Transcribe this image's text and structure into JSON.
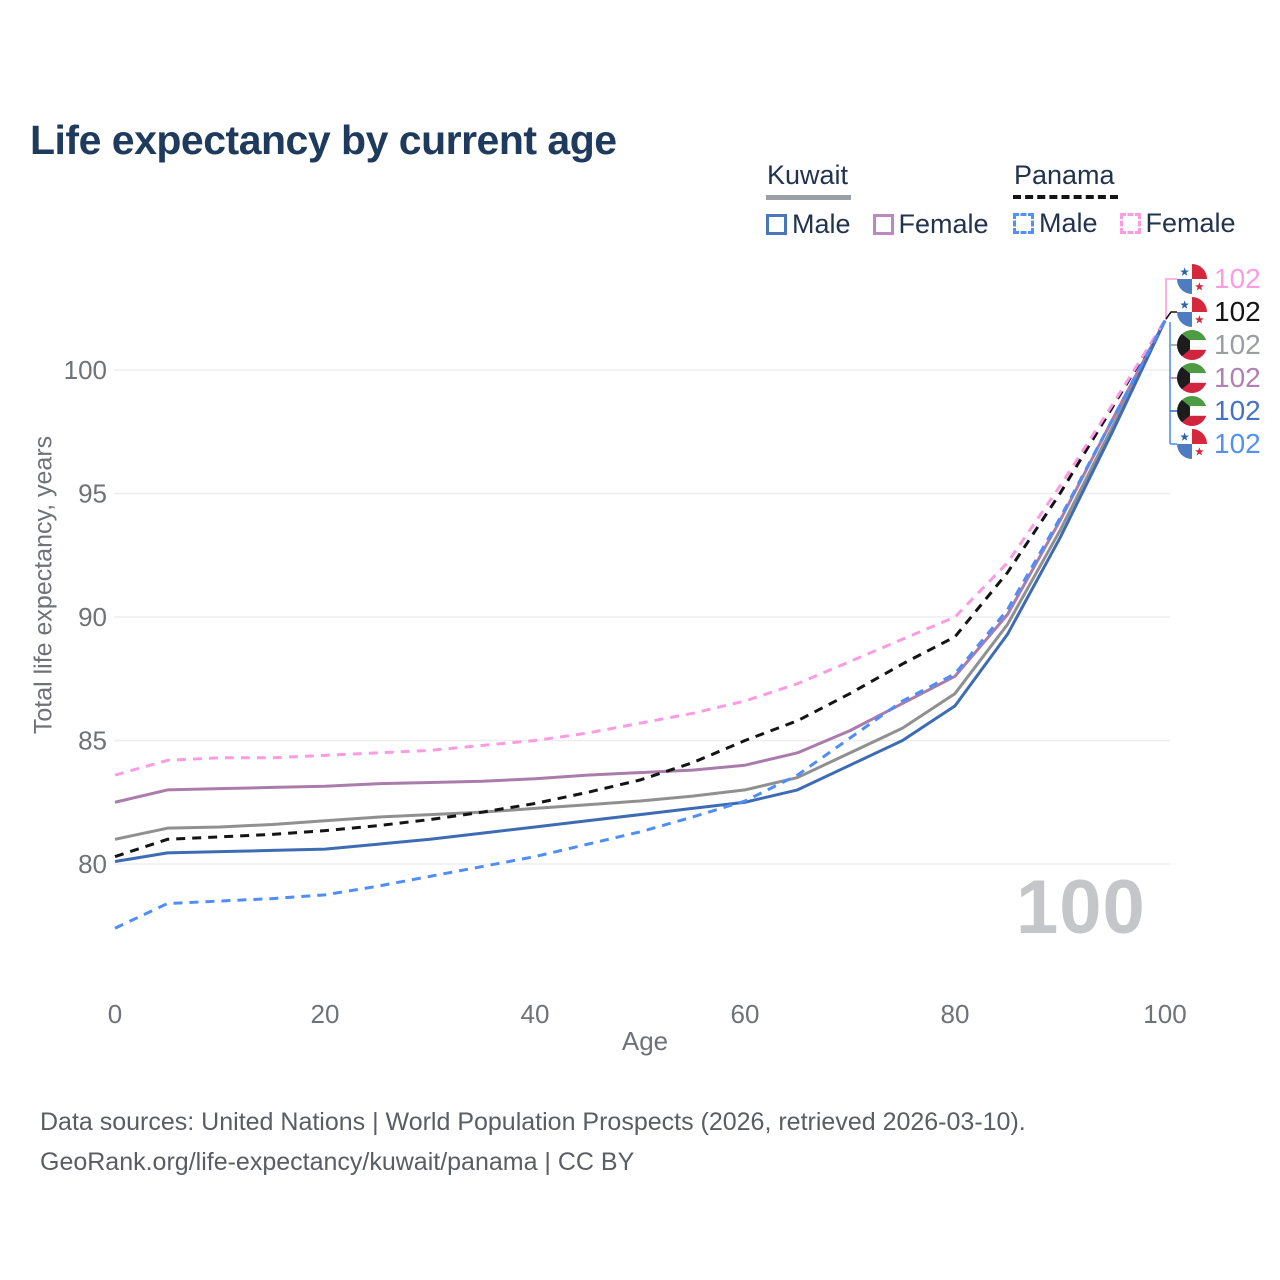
{
  "title": "Life expectancy by current age",
  "legend": {
    "groups": [
      {
        "country": "Kuwait",
        "items": [
          {
            "label": "Male"
          },
          {
            "label": "Female"
          }
        ]
      },
      {
        "country": "Panama",
        "items": [
          {
            "label": "Male"
          },
          {
            "label": "Female"
          }
        ]
      }
    ]
  },
  "watermark": "100",
  "endpoints": [
    {
      "flag": "panama",
      "series": "Panama Female",
      "value": "102",
      "color": "#fb9ce2"
    },
    {
      "flag": "panama",
      "series": "Panama",
      "value": "102",
      "color": "#141414"
    },
    {
      "flag": "kuwait",
      "series": "Kuwait",
      "value": "102",
      "color": "#9a9da1"
    },
    {
      "flag": "kuwait",
      "series": "Kuwait Female",
      "value": "102",
      "color": "#b07fb3"
    },
    {
      "flag": "kuwait",
      "series": "Kuwait Male",
      "value": "102",
      "color": "#4472c4"
    },
    {
      "flag": "panama",
      "series": "Panama Male",
      "value": "102",
      "color": "#5290f2"
    }
  ],
  "footer": {
    "line1": "Data sources: United Nations | World Population Prospects (2026, retrieved 2026-03-10).",
    "line2": "GeoRank.org/life-expectancy/kuwait/panama | CC BY"
  },
  "chart_data": {
    "type": "line",
    "title": "Life expectancy by current age",
    "xlabel": "Age",
    "ylabel": "Total life expectancy, years",
    "x": [
      0,
      5,
      10,
      15,
      20,
      25,
      30,
      35,
      40,
      45,
      50,
      55,
      60,
      65,
      70,
      75,
      80,
      85,
      90,
      95,
      100
    ],
    "xticks": [
      0,
      20,
      40,
      60,
      80,
      100
    ],
    "yticks": [
      80,
      85,
      90,
      95,
      100
    ],
    "xlim": [
      0,
      100
    ],
    "ylim": [
      76.5,
      103
    ],
    "grid": "horizontal",
    "legend_position": "top-right",
    "series": [
      {
        "name": "Kuwait",
        "country": "Kuwait",
        "sex": "Both",
        "dashed": false,
        "color": "#909090",
        "values": [
          81.0,
          81.45,
          81.5,
          81.6,
          81.75,
          81.9,
          82.0,
          82.1,
          82.25,
          82.4,
          82.55,
          82.75,
          83.0,
          83.5,
          84.5,
          85.5,
          86.9,
          89.7,
          93.5,
          97.7,
          102
        ]
      },
      {
        "name": "Kuwait Female",
        "country": "Kuwait",
        "sex": "Female",
        "dashed": false,
        "color": "#aa7cac",
        "values": [
          82.5,
          83.0,
          83.05,
          83.1,
          83.15,
          83.25,
          83.3,
          83.35,
          83.45,
          83.6,
          83.7,
          83.8,
          84.0,
          84.5,
          85.4,
          86.5,
          87.6,
          90.1,
          93.9,
          98.0,
          102
        ]
      },
      {
        "name": "Kuwait Male",
        "country": "Kuwait",
        "sex": "Male",
        "dashed": false,
        "color": "#3d6cb4",
        "values": [
          80.1,
          80.45,
          80.5,
          80.55,
          80.6,
          80.8,
          81.0,
          81.25,
          81.5,
          81.75,
          82.0,
          82.25,
          82.5,
          83.0,
          84.0,
          85.0,
          86.4,
          89.3,
          93.2,
          97.5,
          102
        ]
      },
      {
        "name": "Panama",
        "country": "Panama",
        "sex": "Both",
        "dashed": true,
        "color": "#141414",
        "values": [
          80.3,
          81.0,
          81.1,
          81.2,
          81.35,
          81.55,
          81.8,
          82.1,
          82.45,
          82.9,
          83.4,
          84.1,
          85.0,
          85.8,
          86.9,
          88.1,
          89.2,
          91.8,
          95.0,
          98.5,
          102
        ]
      },
      {
        "name": "Panama Female",
        "country": "Panama",
        "sex": "Female",
        "dashed": true,
        "color": "#fb9ce2",
        "values": [
          83.6,
          84.2,
          84.3,
          84.3,
          84.4,
          84.5,
          84.6,
          84.8,
          85.0,
          85.3,
          85.7,
          86.1,
          86.6,
          87.3,
          88.2,
          89.1,
          90.0,
          92.2,
          95.3,
          98.6,
          102
        ]
      },
      {
        "name": "Panama Male",
        "country": "Panama",
        "sex": "Male",
        "dashed": true,
        "color": "#4f8ef7",
        "values": [
          77.4,
          78.4,
          78.5,
          78.6,
          78.75,
          79.1,
          79.5,
          79.9,
          80.3,
          80.8,
          81.3,
          81.9,
          82.55,
          83.6,
          85.1,
          86.6,
          87.7,
          90.3,
          94.0,
          98.0,
          102
        ]
      }
    ]
  }
}
